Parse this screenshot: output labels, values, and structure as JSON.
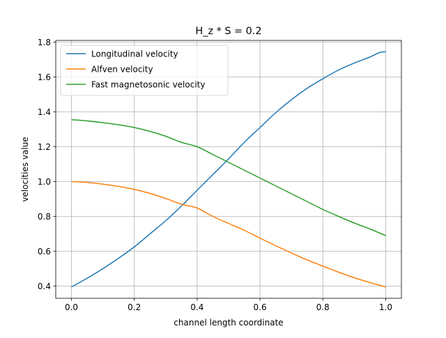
{
  "chart_data": {
    "type": "line",
    "title": "H_z * S = 0.2",
    "xlabel": "channel length coordinate",
    "ylabel": "velocities value",
    "xlim": [
      -0.05,
      1.05
    ],
    "ylim": [
      0.33,
      1.81
    ],
    "xticks": [
      0.0,
      0.2,
      0.4,
      0.6,
      0.8,
      1.0
    ],
    "xtick_labels": [
      "0.0",
      "0.2",
      "0.4",
      "0.6",
      "0.8",
      "1.0"
    ],
    "yticks": [
      0.4,
      0.6,
      0.8,
      1.0,
      1.2,
      1.4,
      1.6,
      1.8
    ],
    "ytick_labels": [
      "0.4",
      "0.6",
      "0.8",
      "1.0",
      "1.2",
      "1.4",
      "1.6",
      "1.8"
    ],
    "grid": true,
    "legend_position": "top-left",
    "x": [
      0.0,
      0.05,
      0.1,
      0.15,
      0.2,
      0.25,
      0.3,
      0.35,
      0.4,
      0.45,
      0.5,
      0.55,
      0.6,
      0.65,
      0.7,
      0.75,
      0.8,
      0.85,
      0.9,
      0.95,
      0.98,
      1.0
    ],
    "series": [
      {
        "name": "Longitudinal velocity",
        "color": "#1f77b4",
        "values": [
          0.395,
          0.445,
          0.5,
          0.56,
          0.625,
          0.7,
          0.775,
          0.86,
          0.95,
          1.04,
          1.13,
          1.225,
          1.31,
          1.395,
          1.47,
          1.535,
          1.59,
          1.64,
          1.68,
          1.715,
          1.74,
          1.745
        ]
      },
      {
        "name": "Alfven velocity",
        "color": "#ff7f0e",
        "values": [
          1.0,
          0.995,
          0.985,
          0.972,
          0.955,
          0.932,
          0.903,
          0.87,
          0.848,
          0.8,
          0.76,
          0.72,
          0.675,
          0.632,
          0.59,
          0.55,
          0.515,
          0.48,
          0.448,
          0.42,
          0.405,
          0.395
        ]
      },
      {
        "name": "Fast magnetosonic velocity",
        "color": "#2ca02c",
        "values": [
          1.355,
          1.348,
          1.338,
          1.326,
          1.31,
          1.288,
          1.26,
          1.225,
          1.2,
          1.155,
          1.11,
          1.065,
          1.02,
          0.975,
          0.93,
          0.885,
          0.84,
          0.8,
          0.762,
          0.728,
          0.705,
          0.69
        ]
      }
    ]
  }
}
